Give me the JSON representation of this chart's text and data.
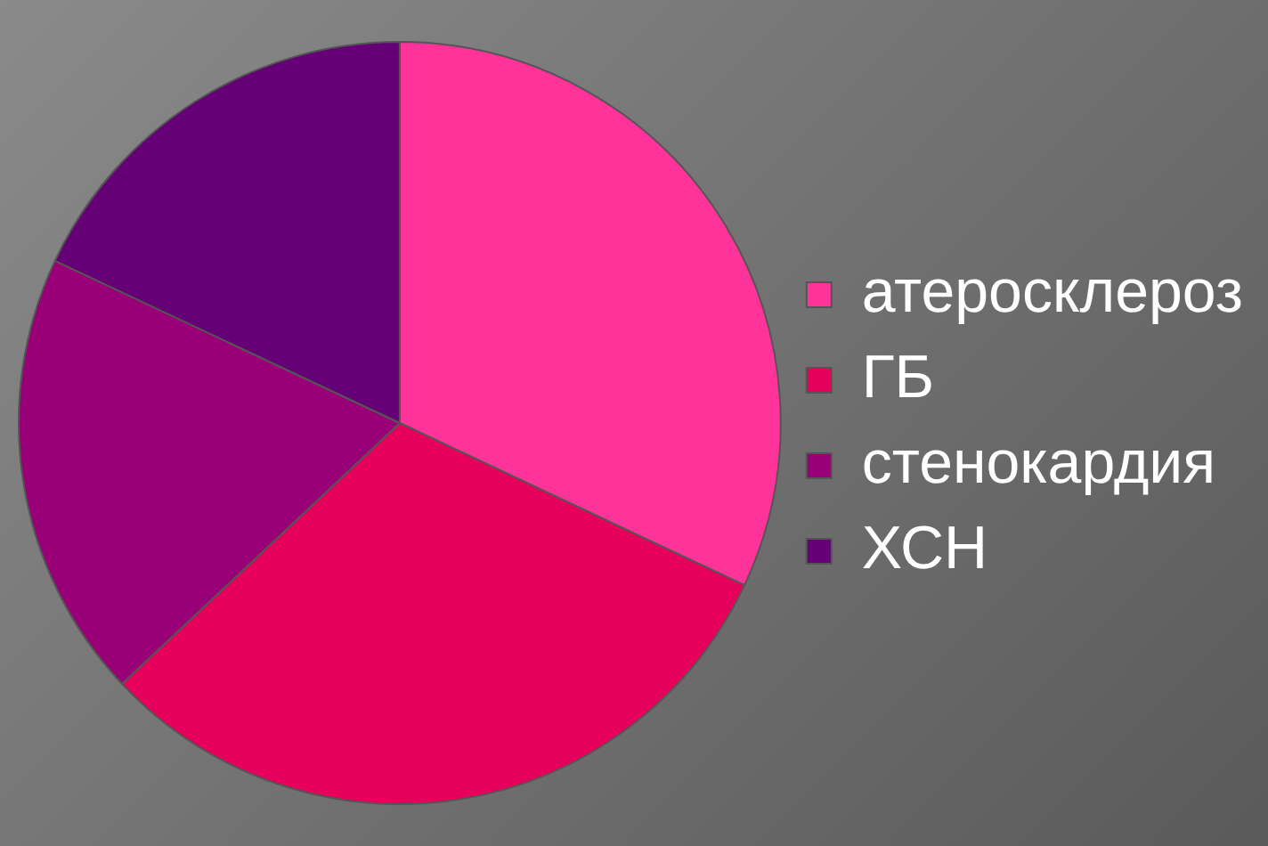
{
  "chart_data": {
    "type": "pie",
    "categories": [
      "атеросклероз",
      "ГБ",
      "стенокардия",
      "ХСН"
    ],
    "values": [
      32,
      31,
      19,
      18
    ],
    "colors": [
      "#ff3399",
      "#e6005c",
      "#990077",
      "#660077"
    ],
    "legend": "right"
  }
}
